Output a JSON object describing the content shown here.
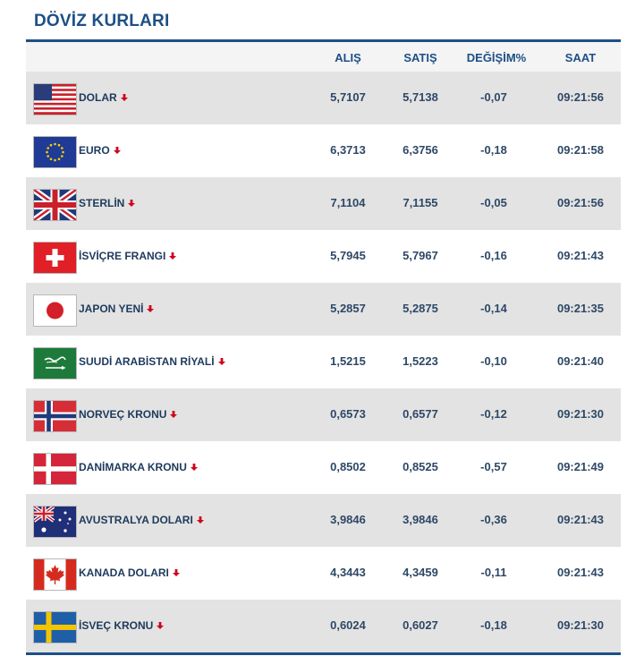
{
  "title": "DÖVİZ KURLARI",
  "columns": {
    "alis": "ALIŞ",
    "satis": "SATIŞ",
    "degisim": "DEĞİŞİM%",
    "saat": "SAAT"
  },
  "colors": {
    "accent": "#1d4f86",
    "down_arrow": "#d0021b",
    "row_alt": "#e3e3e3"
  },
  "rows": [
    {
      "flag": "us-flag-icon",
      "name": "DOLAR",
      "alis": "5,7107",
      "satis": "5,7138",
      "degisim": "-0,07",
      "saat": "09:21:56",
      "trend": "down"
    },
    {
      "flag": "eu-flag-icon",
      "name": "EURO",
      "alis": "6,3713",
      "satis": "6,3756",
      "degisim": "-0,18",
      "saat": "09:21:58",
      "trend": "down"
    },
    {
      "flag": "uk-flag-icon",
      "name": "STERLİN",
      "alis": "7,1104",
      "satis": "7,1155",
      "degisim": "-0,05",
      "saat": "09:21:56",
      "trend": "down"
    },
    {
      "flag": "ch-flag-icon",
      "name": "İSVİÇRE FRANGI",
      "alis": "5,7945",
      "satis": "5,7967",
      "degisim": "-0,16",
      "saat": "09:21:43",
      "trend": "down"
    },
    {
      "flag": "jp-flag-icon",
      "name": "JAPON YENİ",
      "alis": "5,2857",
      "satis": "5,2875",
      "degisim": "-0,14",
      "saat": "09:21:35",
      "trend": "down"
    },
    {
      "flag": "sa-flag-icon",
      "name": "SUUDİ ARABİSTAN RİYALİ",
      "alis": "1,5215",
      "satis": "1,5223",
      "degisim": "-0,10",
      "saat": "09:21:40",
      "trend": "down"
    },
    {
      "flag": "no-flag-icon",
      "name": "NORVEÇ KRONU",
      "alis": "0,6573",
      "satis": "0,6577",
      "degisim": "-0,12",
      "saat": "09:21:30",
      "trend": "down"
    },
    {
      "flag": "dk-flag-icon",
      "name": "DANİMARKA KRONU",
      "alis": "0,8502",
      "satis": "0,8525",
      "degisim": "-0,57",
      "saat": "09:21:49",
      "trend": "down"
    },
    {
      "flag": "au-flag-icon",
      "name": "AVUSTRALYA DOLARI",
      "alis": "3,9846",
      "satis": "3,9846",
      "degisim": "-0,36",
      "saat": "09:21:43",
      "trend": "down"
    },
    {
      "flag": "ca-flag-icon",
      "name": "KANADA DOLARI",
      "alis": "4,3443",
      "satis": "4,3459",
      "degisim": "-0,11",
      "saat": "09:21:43",
      "trend": "down"
    },
    {
      "flag": "se-flag-icon",
      "name": "İSVEÇ KRONU",
      "alis": "0,6024",
      "satis": "0,6027",
      "degisim": "-0,18",
      "saat": "09:21:30",
      "trend": "down"
    }
  ]
}
